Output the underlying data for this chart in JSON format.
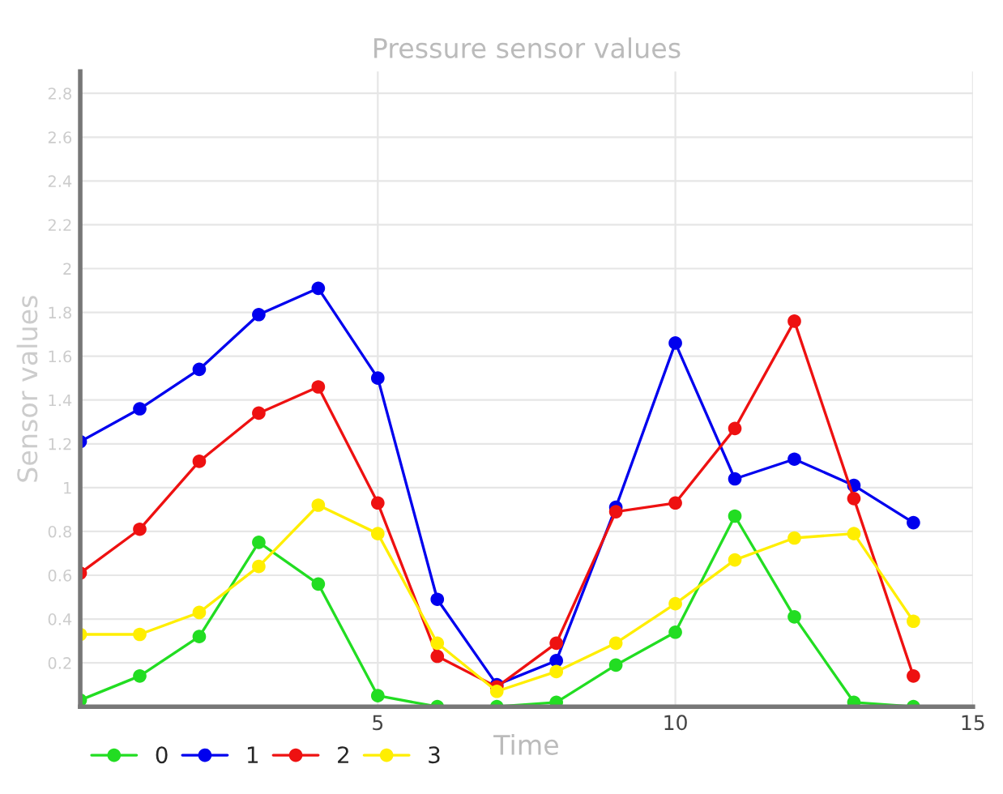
{
  "chart_data": {
    "type": "line",
    "title": "Pressure sensor values",
    "xlabel": "Time",
    "ylabel": "Sensor values",
    "x": [
      0,
      1,
      2,
      3,
      4,
      5,
      6,
      7,
      8,
      9,
      10,
      11,
      12,
      13,
      14
    ],
    "series": [
      {
        "name": "0",
        "color": "#22dd22",
        "values": [
          0.03,
          0.14,
          0.32,
          0.75,
          0.56,
          0.05,
          0,
          0,
          0.02,
          0.19,
          0.34,
          0.87,
          0.41,
          0.02,
          0
        ]
      },
      {
        "name": "1",
        "color": "#0000ee",
        "values": [
          1.21,
          1.36,
          1.54,
          1.79,
          1.91,
          1.5,
          0.49,
          0.1,
          0.21,
          0.91,
          1.66,
          1.04,
          1.13,
          1.01,
          0.84
        ]
      },
      {
        "name": "2",
        "color": "#ee1111",
        "values": [
          0.61,
          0.81,
          1.12,
          1.34,
          1.46,
          0.93,
          0.23,
          0.09,
          0.29,
          0.89,
          0.93,
          1.27,
          1.76,
          0.95,
          0.14
        ]
      },
      {
        "name": "3",
        "color": "#ffee00",
        "values": [
          0.33,
          0.33,
          0.43,
          0.64,
          0.92,
          0.79,
          0.29,
          0.07,
          0.16,
          0.29,
          0.47,
          0.67,
          0.77,
          0.79,
          0.39
        ]
      }
    ],
    "xlim": [
      0,
      15
    ],
    "xticks": [
      5,
      10,
      15
    ],
    "ylim": [
      0,
      2.9
    ],
    "yticks": [
      0.2,
      0.4,
      0.6,
      0.8,
      1,
      1.2,
      1.4,
      1.6,
      1.8,
      2,
      2.2,
      2.4,
      2.6,
      2.8
    ],
    "grid": true,
    "legend": "bottom left",
    "marker": "circle",
    "line_style": "solid"
  }
}
